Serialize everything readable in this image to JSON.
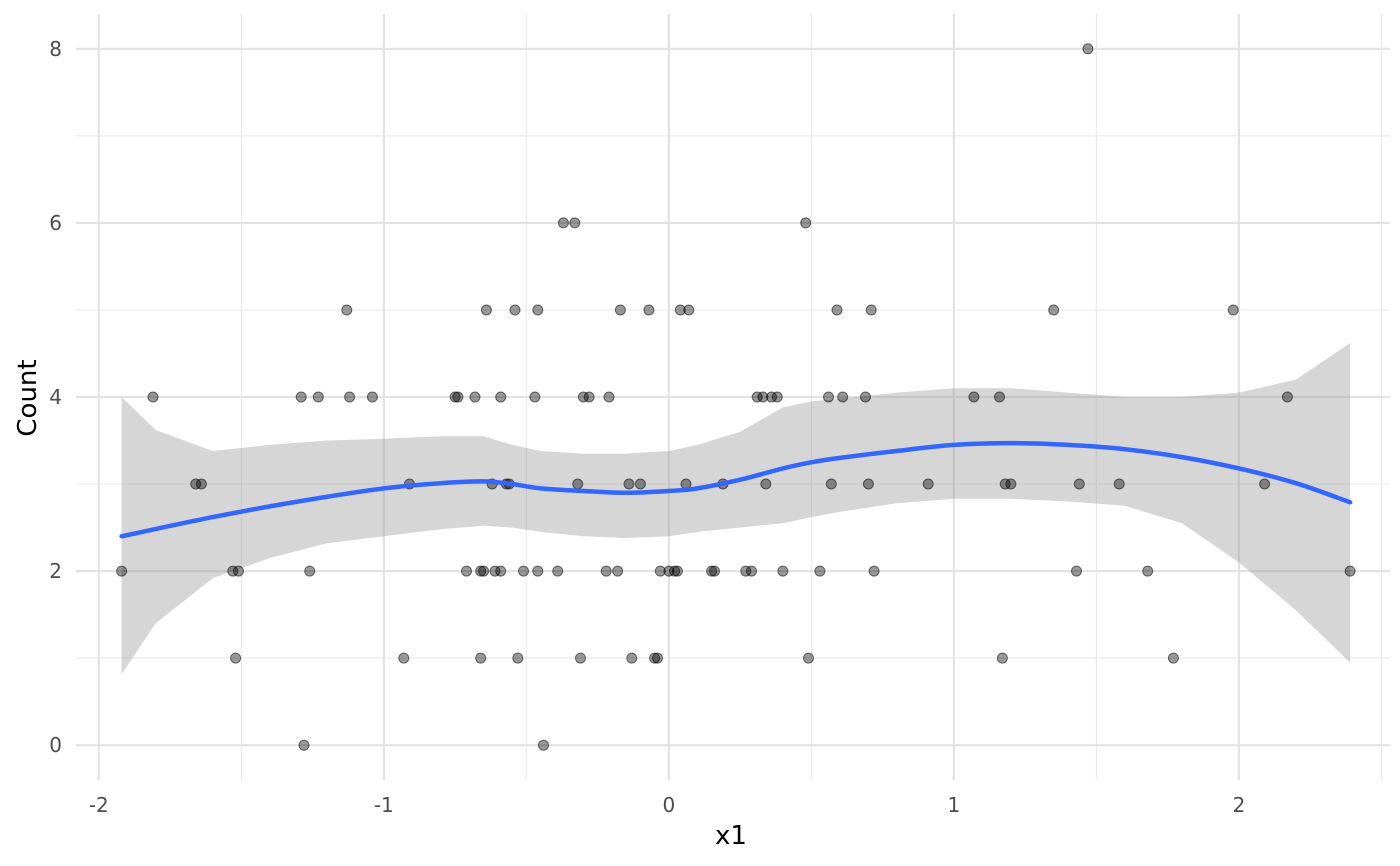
{
  "chart_data": {
    "type": "scatter",
    "xlabel": "x1",
    "ylabel": "Count",
    "xlim": [
      -2.08,
      2.53
    ],
    "ylim": [
      -0.4,
      8.4
    ],
    "x_ticks": [
      -2,
      -1,
      0,
      1,
      2
    ],
    "x_tick_labels": [
      "-2",
      "-1",
      "0",
      "1",
      "2"
    ],
    "y_ticks": [
      0,
      2,
      4,
      6,
      8
    ],
    "y_tick_labels": [
      "0",
      "2",
      "4",
      "6",
      "8"
    ],
    "grid": true,
    "legend": "none",
    "point_color": "#000000",
    "point_opacity": 0.4,
    "smooth_color": "#3366ff",
    "band_color": "#999999",
    "band_opacity": 0.4,
    "points": [
      {
        "x": -1.92,
        "y": 2
      },
      {
        "x": -1.81,
        "y": 4
      },
      {
        "x": -1.66,
        "y": 3
      },
      {
        "x": -1.64,
        "y": 3
      },
      {
        "x": -1.53,
        "y": 2
      },
      {
        "x": -1.52,
        "y": 1
      },
      {
        "x": -1.51,
        "y": 2
      },
      {
        "x": -1.29,
        "y": 4
      },
      {
        "x": -1.28,
        "y": 0
      },
      {
        "x": -1.26,
        "y": 2
      },
      {
        "x": -1.23,
        "y": 4
      },
      {
        "x": -1.13,
        "y": 5
      },
      {
        "x": -1.12,
        "y": 4
      },
      {
        "x": -1.04,
        "y": 4
      },
      {
        "x": -0.93,
        "y": 1
      },
      {
        "x": -0.91,
        "y": 3
      },
      {
        "x": -0.75,
        "y": 4
      },
      {
        "x": -0.74,
        "y": 4
      },
      {
        "x": -0.71,
        "y": 2
      },
      {
        "x": -0.68,
        "y": 4
      },
      {
        "x": -0.66,
        "y": 2
      },
      {
        "x": -0.66,
        "y": 1
      },
      {
        "x": -0.65,
        "y": 2
      },
      {
        "x": -0.64,
        "y": 5
      },
      {
        "x": -0.62,
        "y": 3
      },
      {
        "x": -0.61,
        "y": 2
      },
      {
        "x": -0.59,
        "y": 4
      },
      {
        "x": -0.59,
        "y": 2
      },
      {
        "x": -0.57,
        "y": 3
      },
      {
        "x": -0.56,
        "y": 3
      },
      {
        "x": -0.54,
        "y": 5
      },
      {
        "x": -0.53,
        "y": 1
      },
      {
        "x": -0.51,
        "y": 2
      },
      {
        "x": -0.47,
        "y": 4
      },
      {
        "x": -0.46,
        "y": 5
      },
      {
        "x": -0.46,
        "y": 2
      },
      {
        "x": -0.44,
        "y": 0
      },
      {
        "x": -0.39,
        "y": 2
      },
      {
        "x": -0.37,
        "y": 6
      },
      {
        "x": -0.33,
        "y": 6
      },
      {
        "x": -0.32,
        "y": 3
      },
      {
        "x": -0.31,
        "y": 1
      },
      {
        "x": -0.3,
        "y": 4
      },
      {
        "x": -0.28,
        "y": 4
      },
      {
        "x": -0.22,
        "y": 2
      },
      {
        "x": -0.21,
        "y": 4
      },
      {
        "x": -0.18,
        "y": 2
      },
      {
        "x": -0.17,
        "y": 5
      },
      {
        "x": -0.14,
        "y": 3
      },
      {
        "x": -0.13,
        "y": 1
      },
      {
        "x": -0.1,
        "y": 3
      },
      {
        "x": -0.07,
        "y": 5
      },
      {
        "x": -0.05,
        "y": 1
      },
      {
        "x": -0.04,
        "y": 1
      },
      {
        "x": -0.03,
        "y": 2
      },
      {
        "x": 0.0,
        "y": 2
      },
      {
        "x": 0.02,
        "y": 2
      },
      {
        "x": 0.03,
        "y": 2
      },
      {
        "x": 0.04,
        "y": 5
      },
      {
        "x": 0.06,
        "y": 3
      },
      {
        "x": 0.07,
        "y": 5
      },
      {
        "x": 0.15,
        "y": 2
      },
      {
        "x": 0.16,
        "y": 2
      },
      {
        "x": 0.19,
        "y": 3
      },
      {
        "x": 0.27,
        "y": 2
      },
      {
        "x": 0.29,
        "y": 2
      },
      {
        "x": 0.31,
        "y": 4
      },
      {
        "x": 0.33,
        "y": 4
      },
      {
        "x": 0.34,
        "y": 3
      },
      {
        "x": 0.36,
        "y": 4
      },
      {
        "x": 0.38,
        "y": 4
      },
      {
        "x": 0.4,
        "y": 2
      },
      {
        "x": 0.48,
        "y": 6
      },
      {
        "x": 0.49,
        "y": 1
      },
      {
        "x": 0.53,
        "y": 2
      },
      {
        "x": 0.56,
        "y": 4
      },
      {
        "x": 0.57,
        "y": 3
      },
      {
        "x": 0.59,
        "y": 5
      },
      {
        "x": 0.61,
        "y": 4
      },
      {
        "x": 0.69,
        "y": 4
      },
      {
        "x": 0.7,
        "y": 3
      },
      {
        "x": 0.71,
        "y": 5
      },
      {
        "x": 0.72,
        "y": 2
      },
      {
        "x": 0.91,
        "y": 3
      },
      {
        "x": 1.07,
        "y": 4
      },
      {
        "x": 1.16,
        "y": 4
      },
      {
        "x": 1.17,
        "y": 1
      },
      {
        "x": 1.18,
        "y": 3
      },
      {
        "x": 1.2,
        "y": 3
      },
      {
        "x": 1.35,
        "y": 5
      },
      {
        "x": 1.43,
        "y": 2
      },
      {
        "x": 1.44,
        "y": 3
      },
      {
        "x": 1.47,
        "y": 8
      },
      {
        "x": 1.58,
        "y": 3
      },
      {
        "x": 1.68,
        "y": 2
      },
      {
        "x": 1.77,
        "y": 1
      },
      {
        "x": 1.98,
        "y": 5
      },
      {
        "x": 2.09,
        "y": 3
      },
      {
        "x": 2.17,
        "y": 4
      },
      {
        "x": 2.39,
        "y": 2
      }
    ],
    "smooth_line": {
      "x": [
        -1.92,
        -1.6,
        -1.3,
        -1.0,
        -0.8,
        -0.65,
        -0.55,
        -0.45,
        -0.3,
        -0.15,
        0.0,
        0.1,
        0.25,
        0.4,
        0.5,
        0.6,
        0.8,
        1.0,
        1.2,
        1.4,
        1.6,
        1.8,
        2.0,
        2.2,
        2.39
      ],
      "y": [
        2.4,
        2.62,
        2.8,
        2.95,
        3.01,
        3.03,
        3.0,
        2.95,
        2.92,
        2.9,
        2.92,
        2.95,
        3.05,
        3.18,
        3.25,
        3.3,
        3.38,
        3.45,
        3.47,
        3.45,
        3.4,
        3.31,
        3.18,
        3.01,
        2.79
      ]
    },
    "confidence_band": {
      "x": [
        -1.92,
        -1.8,
        -1.6,
        -1.4,
        -1.2,
        -1.0,
        -0.8,
        -0.65,
        -0.55,
        -0.45,
        -0.3,
        -0.15,
        0.0,
        0.1,
        0.25,
        0.4,
        0.5,
        0.6,
        0.8,
        1.0,
        1.2,
        1.4,
        1.6,
        1.8,
        2.0,
        2.2,
        2.39
      ],
      "upper": [
        4.0,
        3.62,
        3.38,
        3.45,
        3.5,
        3.52,
        3.55,
        3.55,
        3.45,
        3.38,
        3.35,
        3.35,
        3.38,
        3.45,
        3.6,
        3.88,
        3.95,
        3.98,
        4.05,
        4.1,
        4.1,
        4.05,
        4.0,
        4.0,
        4.05,
        4.2,
        4.62
      ],
      "lower": [
        0.82,
        1.4,
        1.92,
        2.15,
        2.32,
        2.4,
        2.48,
        2.52,
        2.5,
        2.45,
        2.4,
        2.38,
        2.4,
        2.45,
        2.5,
        2.55,
        2.62,
        2.68,
        2.78,
        2.83,
        2.83,
        2.8,
        2.75,
        2.55,
        2.1,
        1.55,
        0.95
      ]
    }
  }
}
